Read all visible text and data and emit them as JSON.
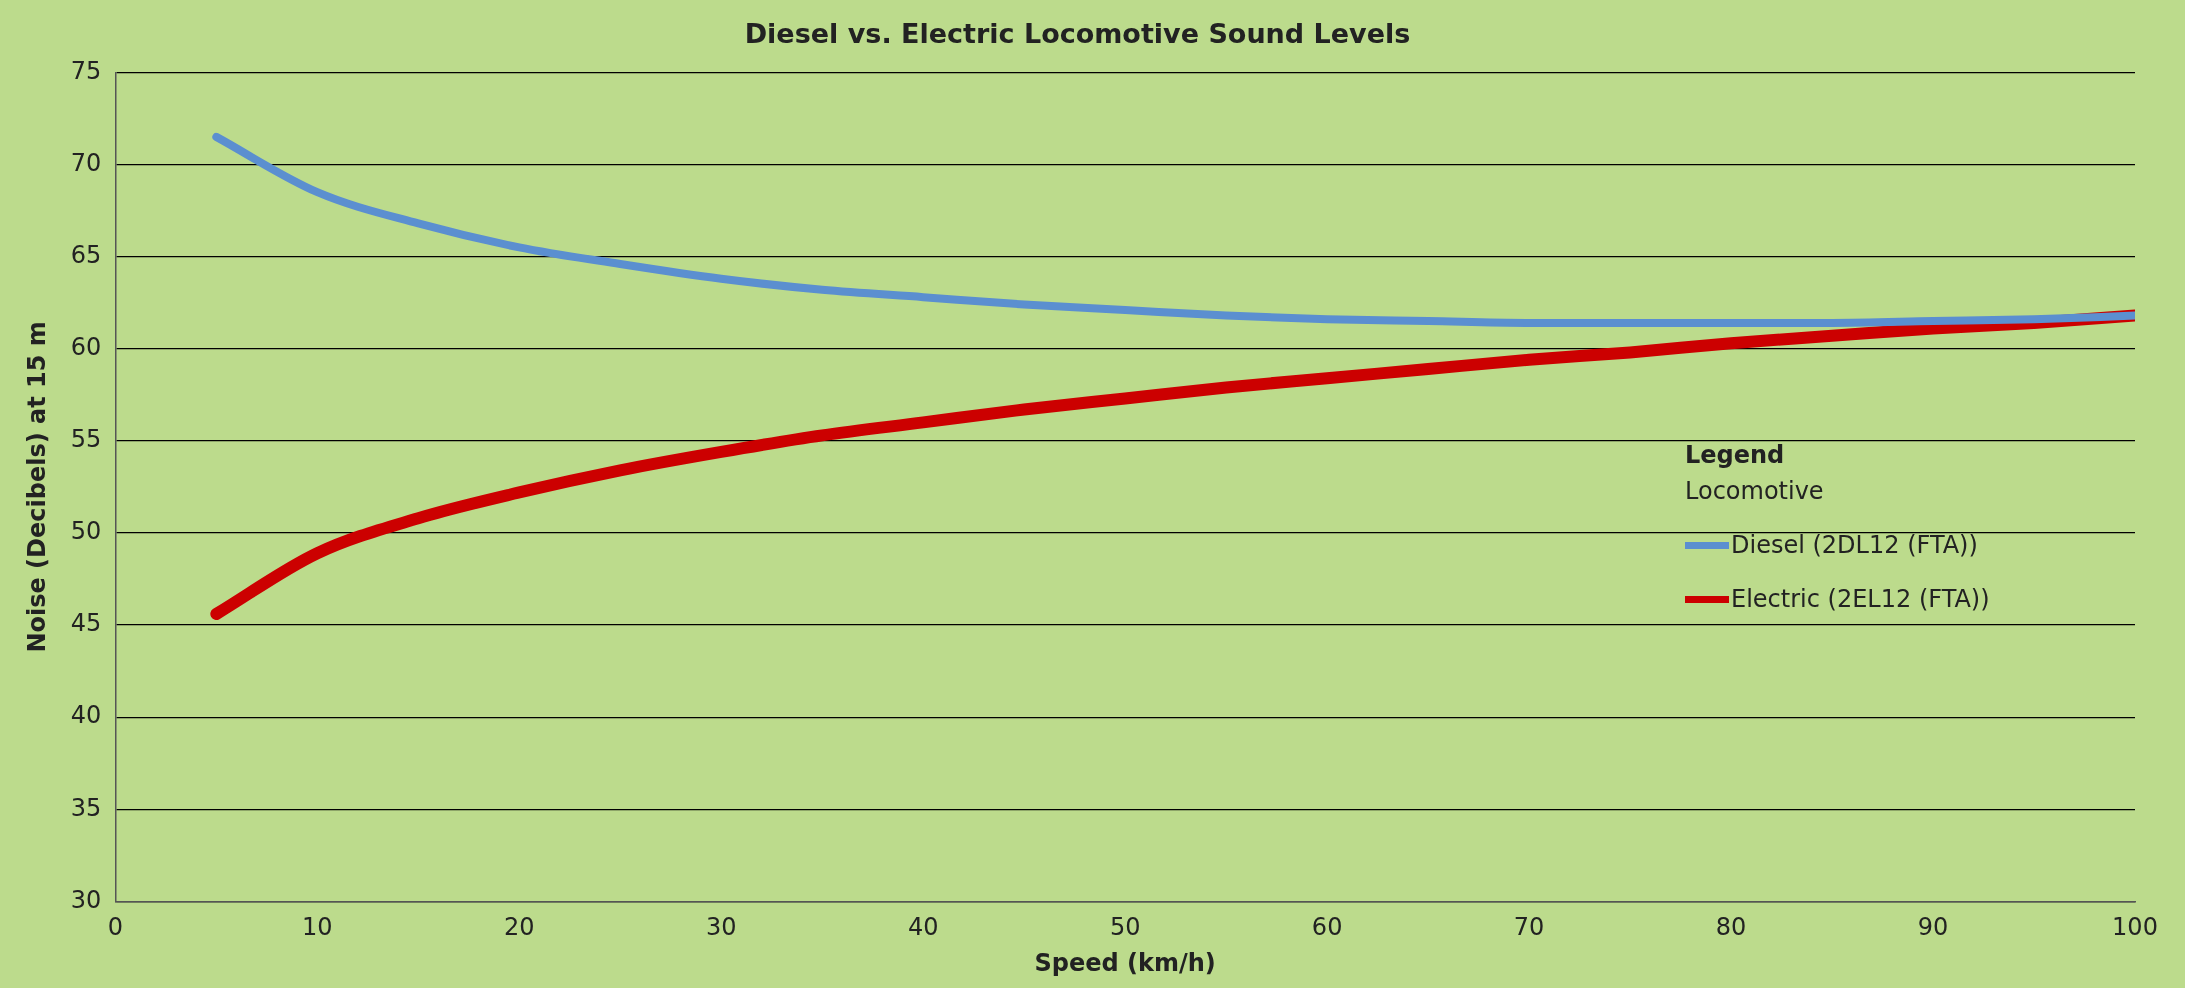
{
  "chart_data": {
    "type": "line",
    "title": "Diesel vs. Electric Locomotive Sound Levels",
    "xlabel": "Speed (km/h)",
    "ylabel": "Noise (Decibels) at 15 m",
    "legend_title": "Legend",
    "annotations": [
      "Locomotive"
    ],
    "x": [
      5,
      10,
      15,
      20,
      25,
      30,
      35,
      40,
      45,
      50,
      55,
      60,
      65,
      70,
      75,
      80,
      85,
      90,
      95,
      100
    ],
    "series": [
      {
        "name": "Diesel (2DL12 (FTA))",
        "color": "#5b8fd0",
        "values": [
          71.5,
          68.5,
          66.8,
          65.5,
          64.6,
          63.8,
          63.2,
          62.8,
          62.4,
          62.1,
          61.8,
          61.6,
          61.5,
          61.4,
          61.4,
          61.4,
          61.4,
          61.5,
          61.6,
          61.8
        ]
      },
      {
        "name": "Electric (2EL12 (FTA))",
        "color": "#cc0000",
        "values": [
          45.6,
          48.9,
          50.8,
          52.2,
          53.4,
          54.4,
          55.3,
          56.0,
          56.7,
          57.3,
          57.9,
          58.4,
          58.9,
          59.4,
          59.8,
          60.3,
          60.7,
          61.1,
          61.4,
          61.8
        ]
      }
    ],
    "xlim": [
      0,
      100
    ],
    "xticks": [
      0,
      10,
      20,
      30,
      40,
      50,
      60,
      70,
      80,
      90,
      100
    ],
    "ylim": [
      30,
      75
    ],
    "yticks": [
      30,
      35,
      40,
      45,
      50,
      55,
      60,
      65,
      70,
      75
    ],
    "grid": "y",
    "legend": "right",
    "marker": "none",
    "line_style": "solid"
  }
}
